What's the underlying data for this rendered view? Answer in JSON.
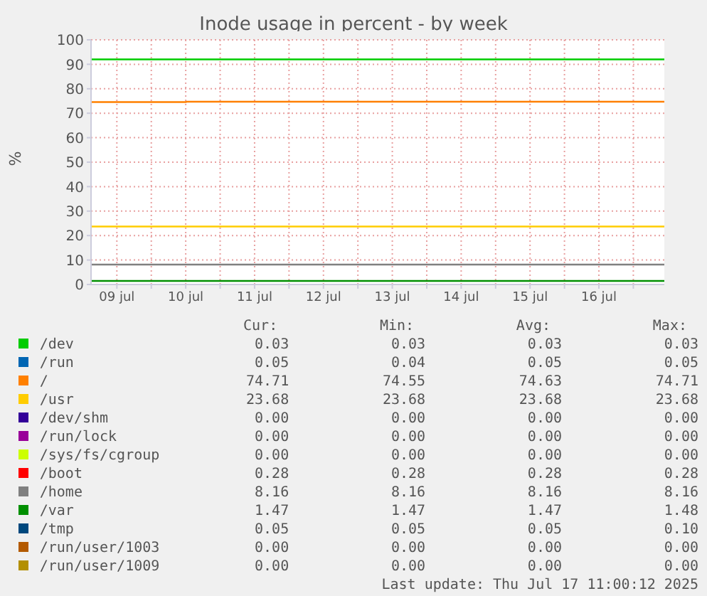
{
  "chart_data": {
    "type": "line",
    "title": "Inode usage in percent - by week",
    "ylabel": "%",
    "xlim": [
      "2025-07-09T03:00",
      "2025-07-17T10:48"
    ],
    "xticks": [
      {
        "value": "2025-07-09T12:00",
        "label": "09 jul"
      },
      {
        "value": "2025-07-10",
        "label": null
      },
      {
        "value": "2025-07-10T12:00",
        "label": "10 jul"
      },
      {
        "value": "2025-07-11",
        "label": null
      },
      {
        "value": "2025-07-11T12:00",
        "label": "11 jul"
      },
      {
        "value": "2025-07-12",
        "label": null
      },
      {
        "value": "2025-07-12T12:00",
        "label": "12 jul"
      },
      {
        "value": "2025-07-13",
        "label": null
      },
      {
        "value": "2025-07-13T12:00",
        "label": "13 jul"
      },
      {
        "value": "2025-07-14",
        "label": null
      },
      {
        "value": "2025-07-14T12:00",
        "label": "14 jul"
      },
      {
        "value": "2025-07-15",
        "label": null
      },
      {
        "value": "2025-07-15T12:00",
        "label": "15 jul"
      },
      {
        "value": "2025-07-16",
        "label": null
      },
      {
        "value": "2025-07-16T12:00",
        "label": "16 jul"
      },
      {
        "value": "2025-07-17",
        "label": null
      }
    ],
    "ylim": [
      0,
      100
    ],
    "yticks": [
      0,
      10,
      20,
      30,
      40,
      50,
      60,
      70,
      80,
      90,
      100
    ],
    "grid": true,
    "legend": "bottom",
    "marker": "none",
    "line_style": "solid",
    "ref_lines": [
      {
        "axis": "y",
        "value": 92,
        "color": "#00cc00"
      }
    ],
    "series": [
      {
        "name": "/dev",
        "color": "#00cc00"
      },
      {
        "name": "/run",
        "color": "#0066b3"
      },
      {
        "name": "/",
        "color": "#ff8000",
        "x": [
          "2025-07-09T03:00",
          "2025-07-10T12:00",
          "2025-07-10T12:15",
          "2025-07-17T10:48"
        ],
        "values": [
          74.55,
          74.55,
          74.71,
          74.71
        ]
      },
      {
        "name": "/usr",
        "color": "#ffcc00",
        "x": [
          "2025-07-09T03:00",
          "2025-07-17T10:48"
        ],
        "values": [
          23.68,
          23.68
        ]
      },
      {
        "name": "/dev/shm",
        "color": "#330099"
      },
      {
        "name": "/run/lock",
        "color": "#990099"
      },
      {
        "name": "/sys/fs/cgroup",
        "color": "#ccff00"
      },
      {
        "name": "/boot",
        "color": "#ff0000"
      },
      {
        "name": "/home",
        "color": "#808080",
        "x": [
          "2025-07-09T03:00",
          "2025-07-17T10:48"
        ],
        "values": [
          8.16,
          8.16
        ]
      },
      {
        "name": "/var",
        "color": "#008f00",
        "x": [
          "2025-07-09T03:00",
          "2025-07-17T10:48"
        ],
        "values": [
          1.47,
          1.47
        ]
      },
      {
        "name": "/tmp",
        "color": "#00487d"
      },
      {
        "name": "/run/user/1003",
        "color": "#b35a00"
      },
      {
        "name": "/run/user/1009",
        "color": "#b38f00"
      }
    ],
    "annotations": [
      "Cur:",
      "Min:",
      "Avg:",
      "Max:",
      "0.03",
      "0.03",
      "0.03",
      "0.03",
      "0.05",
      "0.04",
      "0.05",
      "0.05",
      "74.71",
      "74.55",
      "74.63",
      "74.71",
      "23.68",
      "23.68",
      "23.68",
      "23.68",
      "0.00",
      "0.00",
      "0.00",
      "0.00",
      "0.00",
      "0.00",
      "0.00",
      "0.00",
      "0.00",
      "0.00",
      "0.00",
      "0.00",
      "0.28",
      "0.28",
      "0.28",
      "0.28",
      "8.16",
      "8.16",
      "8.16",
      "8.16",
      "1.47",
      "1.47",
      "1.47",
      "1.48",
      "0.05",
      "0.05",
      "0.05",
      "0.10",
      "0.00",
      "0.00",
      "0.00",
      "0.00",
      "0.00",
      "0.00",
      "0.00",
      "0.00",
      "Last update: Thu Jul 17 11:00:12 2025"
    ]
  }
}
